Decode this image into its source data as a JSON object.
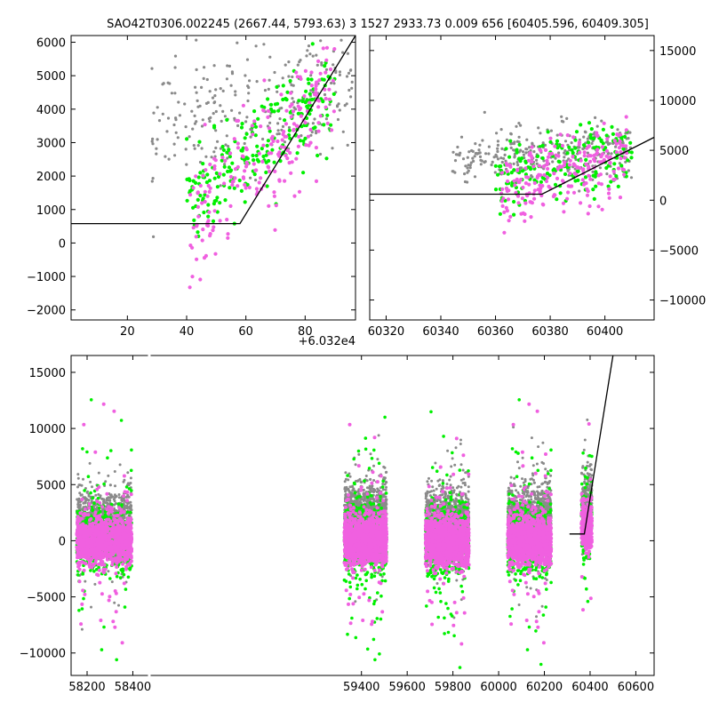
{
  "figure": {
    "title": "SAO42T0306.002245 (2667.44, 5793.63)   3 1527 2933.73 0.009 656 [60405.596, 60409.305]",
    "colors": {
      "grey": "#8a8a8a",
      "green": "#00f000",
      "magenta": "#f060e0",
      "model": "#000000"
    }
  },
  "chart_data": [
    {
      "type": "scatter",
      "name": "zoom-left",
      "x_offset_label": "+6.032e4",
      "xlim": [
        1,
        97
      ],
      "ylim": [
        -2300,
        6200
      ],
      "xticks": [
        20,
        40,
        60,
        80
      ],
      "yticks": [
        -2000,
        -1000,
        0,
        1000,
        2000,
        3000,
        4000,
        5000,
        6000
      ],
      "yaxis_side": "left",
      "clouds": [
        {
          "color": "grey",
          "n": 260,
          "x": [
            28,
            96
          ],
          "yc": [
            3300,
            5000
          ],
          "spread": 900
        },
        {
          "color": "green",
          "n": 230,
          "x": [
            40,
            90
          ],
          "yc": [
            1200,
            4500
          ],
          "spread": 700
        },
        {
          "color": "magenta",
          "n": 220,
          "x": [
            41,
            90
          ],
          "yc": [
            300,
            4800
          ],
          "spread": 900
        }
      ],
      "model": {
        "x": [
          1,
          58,
          97
        ],
        "y": [
          580,
          580,
          6200
        ]
      }
    },
    {
      "type": "scatter",
      "name": "zoom-right",
      "xlim": [
        60314,
        60418
      ],
      "ylim": [
        -12000,
        16500
      ],
      "xticks": [
        60320,
        60340,
        60360,
        60380,
        60400
      ],
      "yticks": [
        -10000,
        -5000,
        0,
        5000,
        10000,
        15000
      ],
      "yaxis_side": "right",
      "clouds": [
        {
          "color": "grey",
          "n": 300,
          "x": [
            60344,
            60410
          ],
          "yc": [
            4200,
            5200
          ],
          "spread": 1400
        },
        {
          "color": "green",
          "n": 180,
          "x": [
            60360,
            60410
          ],
          "yc": [
            1800,
            4500
          ],
          "spread": 1800
        },
        {
          "color": "magenta",
          "n": 230,
          "x": [
            60362,
            60408
          ],
          "yc": [
            800,
            4500
          ],
          "spread": 1800
        }
      ],
      "model": {
        "x": [
          60314,
          60377,
          60418
        ],
        "y": [
          600,
          600,
          6300
        ]
      }
    },
    {
      "type": "scatter",
      "name": "full-light-curve",
      "xlim": [
        58130,
        60680
      ],
      "ylim": [
        -12000,
        16500
      ],
      "xticks": [
        58200,
        58400,
        59400,
        59600,
        59800,
        60000,
        60200,
        60400,
        60600
      ],
      "yticks": [
        -10000,
        -5000,
        0,
        5000,
        10000,
        15000
      ],
      "yaxis_side": "left",
      "seasons": [
        {
          "x": [
            58155,
            58395
          ],
          "grey_y": 1700,
          "magenta_y": 0,
          "n": 1100
        },
        {
          "x": [
            59325,
            59510
          ],
          "grey_y": 2200,
          "magenta_y": 0,
          "n": 1300
        },
        {
          "x": [
            59680,
            59870
          ],
          "grey_y": 1800,
          "magenta_y": -100,
          "n": 1300
        },
        {
          "x": [
            60040,
            60230
          ],
          "grey_y": 1900,
          "magenta_y": 0,
          "n": 1300
        },
        {
          "x": [
            60362,
            60408
          ],
          "grey_y": 3500,
          "magenta_y": 1200,
          "n": 300
        }
      ],
      "model": {
        "x": [
          60310,
          60375,
          60500
        ],
        "y": [
          600,
          600,
          16500
        ]
      }
    }
  ]
}
